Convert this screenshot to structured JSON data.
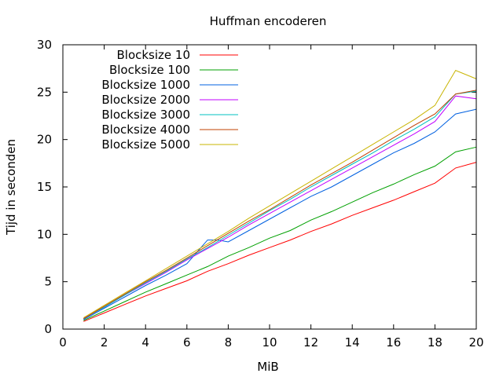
{
  "chart_data": {
    "type": "line",
    "title": "Huffman encoderen",
    "xlabel": "MiB",
    "ylabel": "Tijd in seconden",
    "xlim": [
      0,
      20
    ],
    "ylim": [
      0,
      30
    ],
    "xticks": [
      0,
      2,
      4,
      6,
      8,
      10,
      12,
      14,
      16,
      18,
      20
    ],
    "yticks": [
      0,
      5,
      10,
      15,
      20,
      25,
      30
    ],
    "grid": false,
    "legend_position": "top-left",
    "series": [
      {
        "name": "Blocksize 10",
        "color": "#ff0000",
        "x": [
          1,
          2,
          3,
          4,
          5,
          6,
          7,
          8,
          9,
          10,
          11,
          12,
          13,
          14,
          15,
          16,
          17,
          18,
          19,
          20
        ],
        "y": [
          0.8,
          1.7,
          2.6,
          3.5,
          4.3,
          5.1,
          6.1,
          6.9,
          7.8,
          8.6,
          9.4,
          10.3,
          11.1,
          12.0,
          12.8,
          13.6,
          14.5,
          15.4,
          17.0,
          17.6
        ]
      },
      {
        "name": "Blocksize 100",
        "color": "#00a000",
        "x": [
          1,
          2,
          3,
          4,
          5,
          6,
          7,
          8,
          9,
          10,
          11,
          12,
          13,
          14,
          15,
          16,
          17,
          18,
          19,
          20
        ],
        "y": [
          0.9,
          1.9,
          2.9,
          3.9,
          4.8,
          5.7,
          6.6,
          7.7,
          8.6,
          9.6,
          10.4,
          11.5,
          12.4,
          13.4,
          14.4,
          15.3,
          16.3,
          17.2,
          18.7,
          19.2
        ]
      },
      {
        "name": "Blocksize 1000",
        "color": "#0060e0",
        "x": [
          1,
          2,
          3,
          4,
          5,
          6,
          7,
          7.5,
          8,
          9,
          10,
          11,
          12,
          13,
          14,
          15,
          16,
          17,
          18,
          19,
          20
        ],
        "y": [
          1.0,
          2.2,
          3.4,
          4.6,
          5.7,
          6.9,
          9.4,
          9.4,
          9.2,
          10.4,
          11.6,
          12.8,
          14.0,
          15.0,
          16.2,
          17.4,
          18.6,
          19.6,
          20.8,
          22.7,
          23.2
        ]
      },
      {
        "name": "Blocksize 2000",
        "color": "#c000ff",
        "x": [
          1,
          2,
          3,
          4,
          5,
          6,
          7,
          8,
          9,
          10,
          11,
          12,
          13,
          14,
          15,
          16,
          17,
          18,
          19,
          20
        ],
        "y": [
          1.1,
          2.3,
          3.6,
          4.8,
          6.0,
          7.3,
          8.5,
          9.7,
          11.0,
          12.2,
          13.4,
          14.6,
          15.8,
          17.0,
          18.2,
          19.4,
          20.6,
          21.9,
          24.6,
          24.3
        ]
      },
      {
        "name": "Blocksize 3000",
        "color": "#00c0c0",
        "x": [
          1,
          2,
          3,
          4,
          5,
          6,
          7,
          8,
          9,
          10,
          11,
          12,
          13,
          14,
          15,
          16,
          17,
          18,
          19,
          20
        ],
        "y": [
          1.1,
          2.3,
          3.6,
          4.9,
          6.1,
          7.4,
          8.6,
          9.9,
          11.2,
          12.5,
          13.7,
          15.0,
          16.2,
          17.4,
          18.6,
          19.9,
          21.1,
          22.4,
          24.8,
          25.1
        ]
      },
      {
        "name": "Blocksize 4000",
        "color": "#c04000",
        "x": [
          1,
          2,
          3,
          4,
          5,
          6,
          7,
          8,
          9,
          10,
          11,
          12,
          13,
          14,
          15,
          16,
          17,
          18,
          19,
          20
        ],
        "y": [
          1.1,
          2.4,
          3.7,
          5.0,
          6.2,
          7.5,
          8.8,
          10.1,
          11.4,
          12.6,
          13.9,
          15.2,
          16.4,
          17.6,
          18.9,
          20.2,
          21.5,
          22.7,
          24.8,
          25.2
        ]
      },
      {
        "name": "Blocksize 5000",
        "color": "#c8b400",
        "x": [
          1,
          2,
          3,
          4,
          5,
          6,
          7,
          8,
          9,
          10,
          11,
          12,
          13,
          14,
          15,
          16,
          17,
          18,
          19,
          20
        ],
        "y": [
          1.2,
          2.5,
          3.8,
          5.1,
          6.4,
          7.7,
          9.0,
          10.3,
          11.7,
          13.0,
          14.3,
          15.6,
          16.9,
          18.2,
          19.5,
          20.8,
          22.1,
          23.6,
          27.3,
          26.4
        ]
      }
    ]
  }
}
